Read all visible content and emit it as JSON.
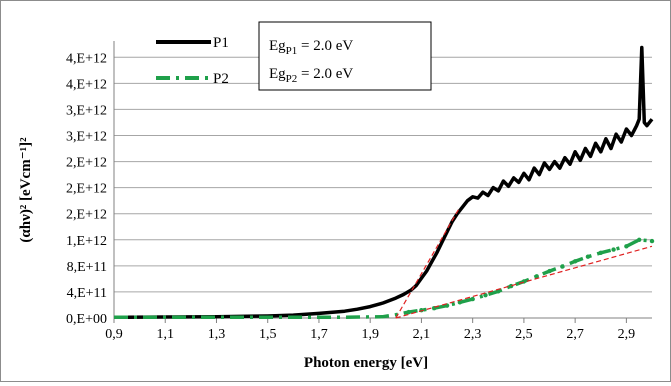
{
  "chart_data": {
    "type": "line",
    "xlabel": "Photon energy [eV]",
    "ylabel": "(αhν)² [eVcm⁻¹]²",
    "xlim": [
      0.9,
      3.0
    ],
    "ylim": [
      0,
      4250000000000.0
    ],
    "x_ticks": [
      0.9,
      1.1,
      1.3,
      1.5,
      1.7,
      1.9,
      2.1,
      2.3,
      2.5,
      2.7,
      2.9
    ],
    "x_tick_labels": [
      "0,9",
      "1,1",
      "1,3",
      "1,5",
      "1,7",
      "1,9",
      "2,1",
      "2,3",
      "2,5",
      "2,7",
      "2,9"
    ],
    "y_ticks": [
      0,
      400000000000.0,
      800000000000.0,
      1200000000000.0,
      1600000000000.0,
      2000000000000.0,
      2400000000000.0,
      2800000000000.0,
      3200000000000.0,
      3600000000000.0,
      4000000000000.0
    ],
    "y_tick_labels": [
      "0,E+00",
      "4,E+11",
      "8,E+11",
      "1,E+12",
      "2,E+12",
      "2,E+12",
      "2,E+12",
      "3,E+12",
      "3,E+12",
      "4,E+12",
      "4,E+12"
    ],
    "grid": "horizontal",
    "legend_position": "top-left",
    "series": [
      {
        "name": "P1",
        "style": "solid",
        "color": "#000000",
        "x": [
          0.9,
          1.1,
          1.3,
          1.5,
          1.6,
          1.7,
          1.8,
          1.85,
          1.9,
          1.95,
          2.0,
          2.03,
          2.06,
          2.08,
          2.1,
          2.12,
          2.14,
          2.16,
          2.18,
          2.2,
          2.22,
          2.24,
          2.26,
          2.28,
          2.3,
          2.32,
          2.34,
          2.36,
          2.38,
          2.4,
          2.42,
          2.44,
          2.46,
          2.48,
          2.5,
          2.52,
          2.54,
          2.56,
          2.58,
          2.6,
          2.62,
          2.64,
          2.66,
          2.68,
          2.7,
          2.72,
          2.74,
          2.76,
          2.78,
          2.8,
          2.82,
          2.84,
          2.86,
          2.88,
          2.9,
          2.92,
          2.94,
          2.95,
          2.96,
          2.97,
          2.98,
          3.0
        ],
        "y": [
          10000000000.0,
          15000000000.0,
          20000000000.0,
          30000000000.0,
          45000000000.0,
          70000000000.0,
          105000000000.0,
          135000000000.0,
          175000000000.0,
          230000000000.0,
          305000000000.0,
          360000000000.0,
          430000000000.0,
          500000000000.0,
          610000000000.0,
          720000000000.0,
          860000000000.0,
          1000000000000.0,
          1160000000000.0,
          1320000000000.0,
          1480000000000.0,
          1600000000000.0,
          1700000000000.0,
          1800000000000.0,
          1860000000000.0,
          1840000000000.0,
          1930000000000.0,
          1880000000000.0,
          2000000000000.0,
          1950000000000.0,
          2100000000000.0,
          2020000000000.0,
          2150000000000.0,
          2080000000000.0,
          2220000000000.0,
          2120000000000.0,
          2300000000000.0,
          2200000000000.0,
          2380000000000.0,
          2280000000000.0,
          2400000000000.0,
          2300000000000.0,
          2460000000000.0,
          2360000000000.0,
          2550000000000.0,
          2420000000000.0,
          2600000000000.0,
          2480000000000.0,
          2680000000000.0,
          2550000000000.0,
          2750000000000.0,
          2600000000000.0,
          2820000000000.0,
          2700000000000.0,
          2900000000000.0,
          2800000000000.0,
          2950000000000.0,
          3050000000000.0,
          4150000000000.0,
          3000000000000.0,
          2950000000000.0,
          3050000000000.0
        ]
      },
      {
        "name": "P2",
        "style": "dash-dot",
        "color": "#1fa04a",
        "x": [
          0.9,
          1.0,
          1.2,
          1.4,
          1.6,
          1.8,
          1.95,
          2.0,
          2.05,
          2.1,
          2.15,
          2.2,
          2.25,
          2.3,
          2.35,
          2.4,
          2.45,
          2.5,
          2.55,
          2.6,
          2.65,
          2.7,
          2.75,
          2.8,
          2.85,
          2.9,
          2.95,
          3.0
        ],
        "y": [
          10000000000.0,
          10000000000.0,
          10000000000.0,
          10000000000.0,
          10000000000.0,
          10000000000.0,
          20000000000.0,
          50000000000.0,
          90000000000.0,
          120000000000.0,
          150000000000.0,
          190000000000.0,
          240000000000.0,
          290000000000.0,
          350000000000.0,
          410000000000.0,
          490000000000.0,
          560000000000.0,
          640000000000.0,
          720000000000.0,
          790000000000.0,
          870000000000.0,
          940000000000.0,
          1000000000000.0,
          1050000000000.0,
          1100000000000.0,
          1200000000000.0,
          1180000000000.0
        ]
      }
    ],
    "fit_lines": [
      {
        "color": "#e02020",
        "style": "dashed",
        "x": [
          2.0,
          2.25
        ],
        "y": [
          0,
          1700000000000.0
        ]
      },
      {
        "color": "#e02020",
        "style": "dashed",
        "x": [
          2.0,
          3.0
        ],
        "y": [
          0,
          1100000000000.0
        ]
      }
    ],
    "annotation": {
      "line1": {
        "base": "Eg",
        "sub": "P1",
        "rest": " = 2.0 eV"
      },
      "line2": {
        "base": "Eg",
        "sub": "P2",
        "rest": " = 2.0 eV"
      }
    }
  }
}
